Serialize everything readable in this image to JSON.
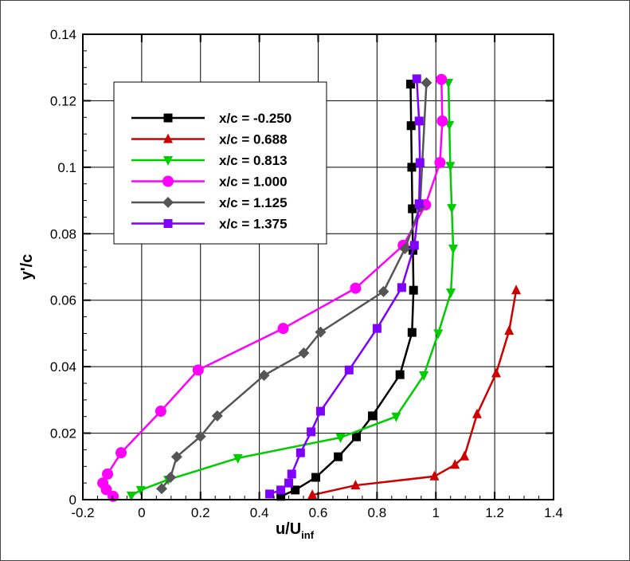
{
  "chart_data": {
    "type": "line",
    "xlabel": "u/U",
    "xlabel_sub": "inf",
    "ylabel": "y'/c",
    "xlim": [
      -0.2,
      1.4
    ],
    "ylim": [
      0,
      0.14
    ],
    "xticks": [
      "-0.2",
      "0",
      "0.2",
      "0.4",
      "0.6",
      "0.8",
      "1",
      "1.2",
      "1.4"
    ],
    "yticks": [
      "0",
      "0.02",
      "0.04",
      "0.06",
      "0.08",
      "0.1",
      "0.12",
      "0.14"
    ],
    "grid": true,
    "legend_position": "top-left",
    "series": [
      {
        "name": "x/c = -0.250",
        "color": "#000000",
        "marker": "square",
        "x": [
          0.473,
          0.522,
          0.592,
          0.668,
          0.73,
          0.784,
          0.878,
          0.919,
          0.924,
          0.922,
          0.92,
          0.918,
          0.916,
          0.914
        ],
        "y": [
          0.001,
          0.0029,
          0.0067,
          0.0129,
          0.0189,
          0.0252,
          0.0376,
          0.0503,
          0.063,
          0.075,
          0.0875,
          0.1,
          0.1125,
          0.125
        ]
      },
      {
        "name": "x/c = 0.688",
        "color": "#cc0000",
        "marker": "triangle-up",
        "x": [
          0.58,
          0.727,
          0.995,
          1.065,
          1.097,
          1.14,
          1.205,
          1.249,
          1.273
        ],
        "y": [
          0.0014,
          0.0043,
          0.007,
          0.0105,
          0.013,
          0.0257,
          0.038,
          0.0508,
          0.063
        ]
      },
      {
        "name": "x/c = 0.813",
        "color": "#00cc00",
        "marker": "triangle-down",
        "x": [
          -0.035,
          -0.003,
          0.09,
          0.327,
          0.676,
          0.865,
          0.959,
          1.008,
          1.051,
          1.059,
          1.054,
          1.049,
          1.046,
          1.043
        ],
        "y": [
          0.0012,
          0.0029,
          0.006,
          0.0125,
          0.0187,
          0.025,
          0.0374,
          0.05,
          0.0623,
          0.0755,
          0.0877,
          0.1004,
          0.1127,
          0.1254
        ]
      },
      {
        "name": "x/c = 1.000",
        "color": "#ff00ff",
        "marker": "circle",
        "x": [
          -0.097,
          -0.12,
          -0.132,
          -0.116,
          -0.07,
          0.065,
          0.192,
          0.481,
          0.727,
          0.889,
          0.965,
          1.014,
          1.022,
          1.019
        ],
        "y": [
          0.001,
          0.003,
          0.005,
          0.0077,
          0.0141,
          0.0266,
          0.039,
          0.0515,
          0.0636,
          0.0765,
          0.0887,
          0.1014,
          0.1139,
          0.1264
        ]
      },
      {
        "name": "x/c = 1.125",
        "color": "#555555",
        "marker": "diamond",
        "x": [
          0.068,
          0.098,
          0.119,
          0.2,
          0.257,
          0.416,
          0.551,
          0.608,
          0.822,
          0.895,
          0.946,
          0.968
        ],
        "y": [
          0.0033,
          0.0067,
          0.0129,
          0.019,
          0.0252,
          0.0374,
          0.0441,
          0.0504,
          0.0626,
          0.0755,
          0.088,
          0.1254
        ]
      },
      {
        "name": "x/c = 1.375",
        "color": "#7f00ff",
        "marker": "square",
        "x": [
          0.435,
          0.473,
          0.5,
          0.51,
          0.54,
          0.576,
          0.608,
          0.705,
          0.8,
          0.884,
          0.927,
          0.943,
          0.946,
          0.943,
          0.935
        ],
        "y": [
          0.0017,
          0.0029,
          0.005,
          0.0077,
          0.0141,
          0.0204,
          0.0266,
          0.039,
          0.0515,
          0.0638,
          0.0765,
          0.089,
          0.1014,
          0.1139,
          0.1266
        ]
      }
    ]
  }
}
